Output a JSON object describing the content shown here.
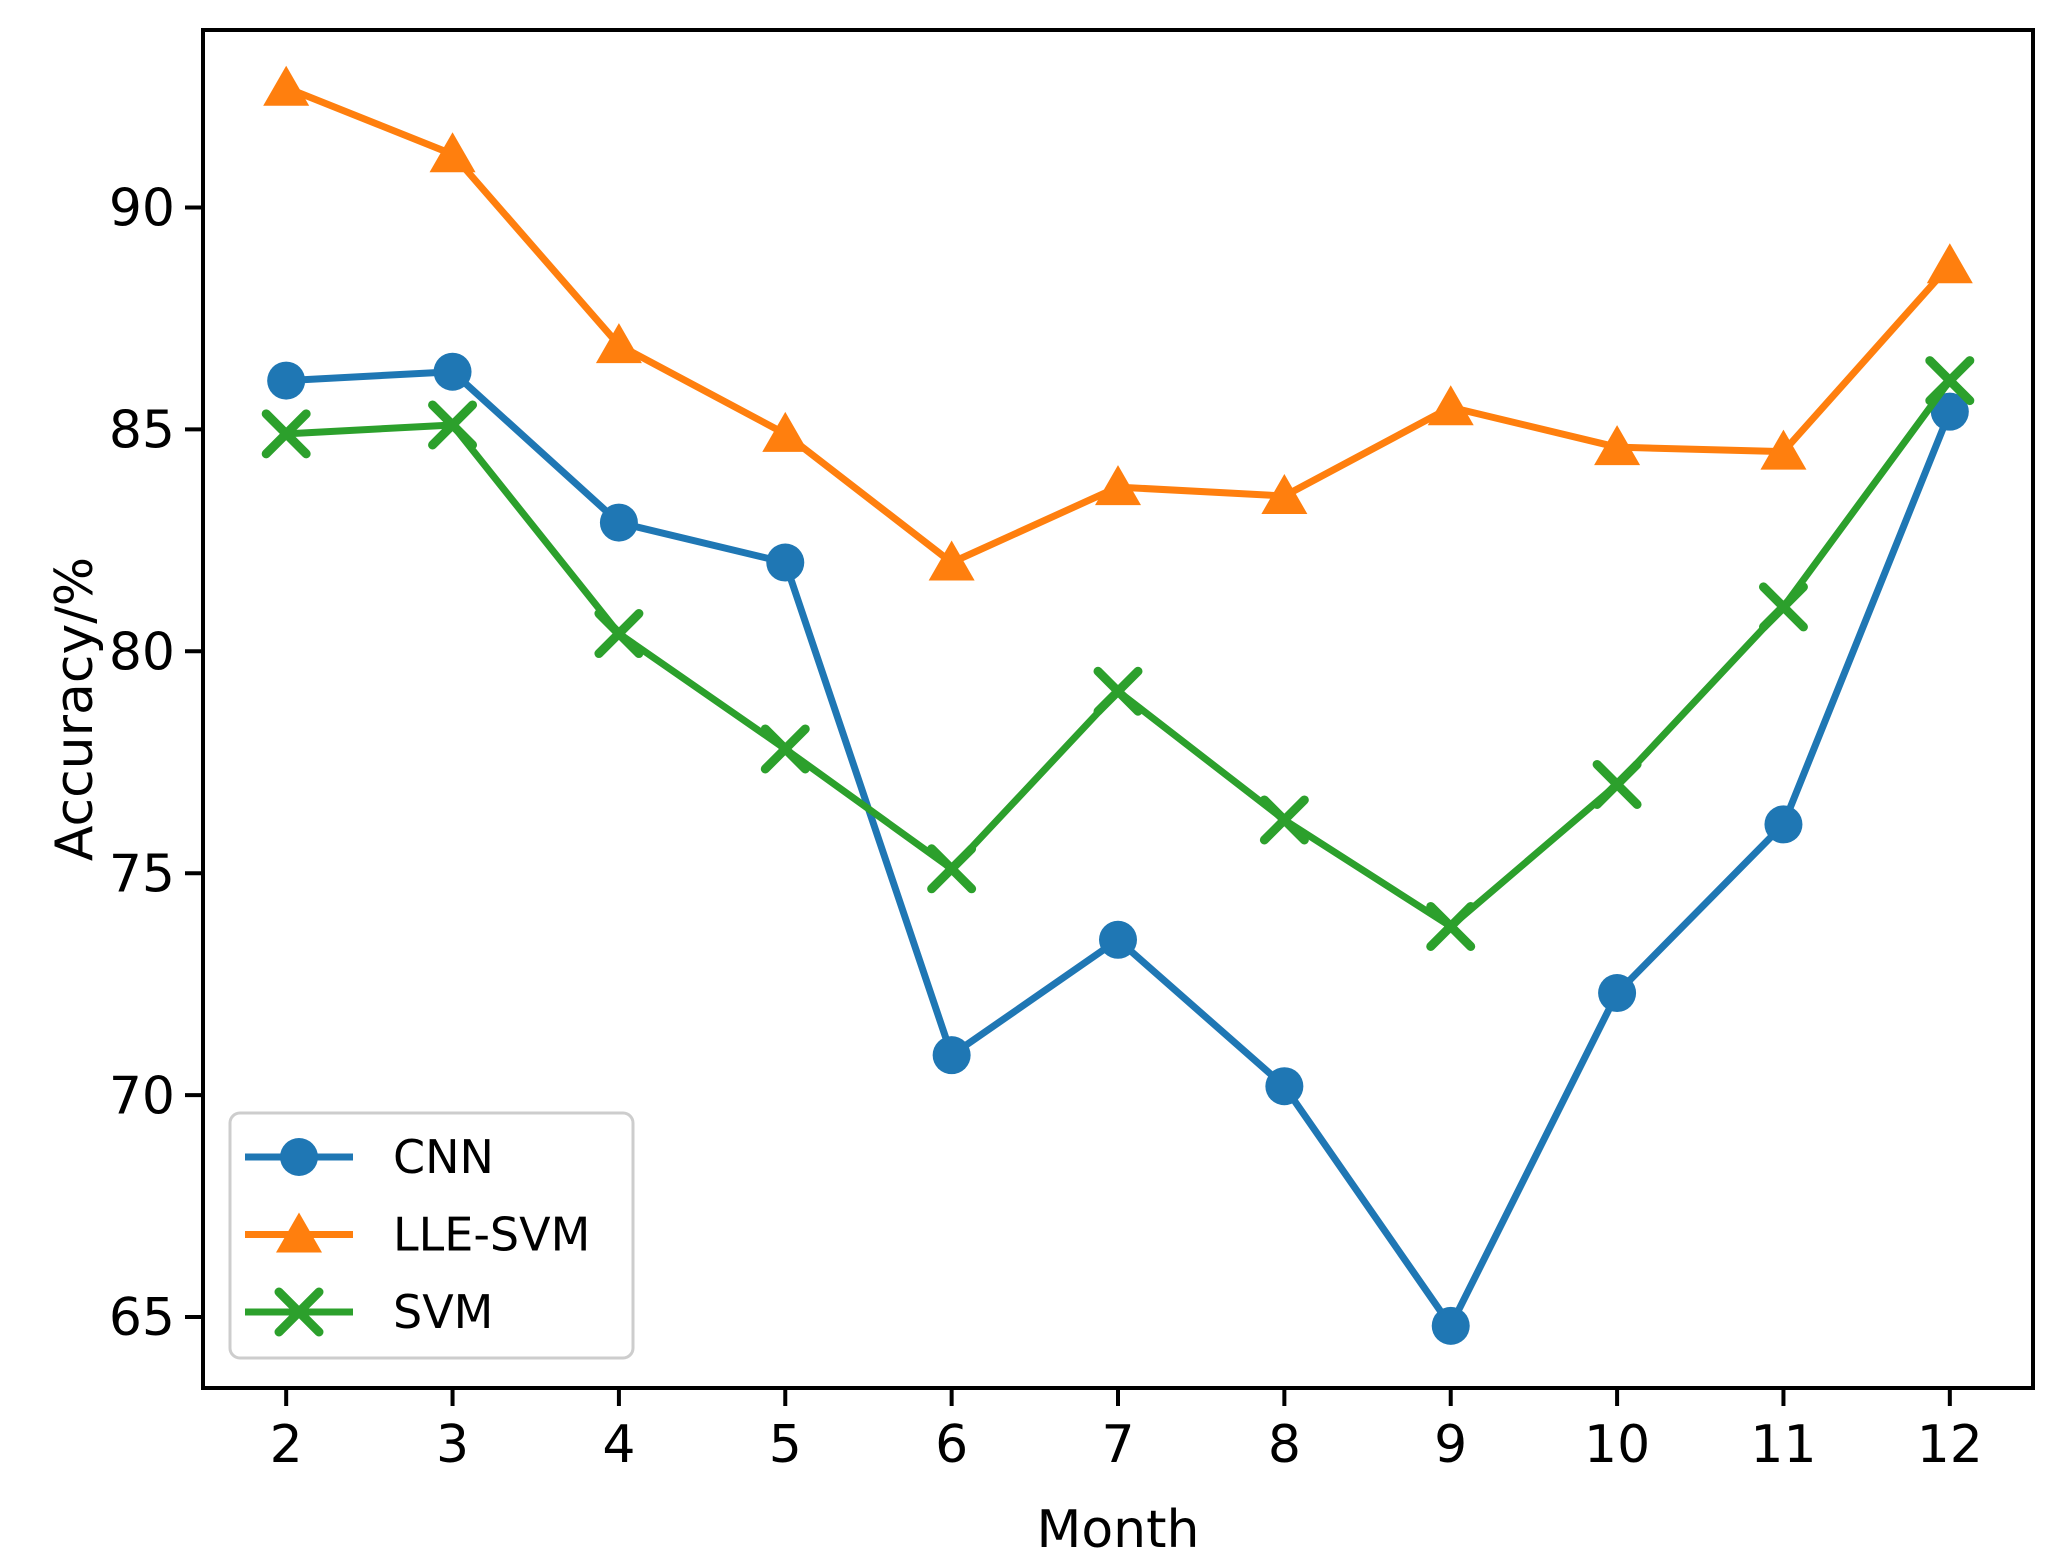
{
  "figure": {
    "background": "#ffffff"
  },
  "chart_data": {
    "type": "line",
    "title": "",
    "xlabel": "Month",
    "ylabel": "Accuracy/%",
    "x": [
      2,
      3,
      4,
      5,
      6,
      7,
      8,
      9,
      10,
      11,
      12
    ],
    "xlim": [
      1.5,
      12.5
    ],
    "ylim": [
      63.4,
      94.0
    ],
    "yticks": [
      65,
      70,
      75,
      80,
      85,
      90
    ],
    "grid": false,
    "legend_position": "lower left",
    "axis_color": "#000000",
    "legend_border_color": "#cdcdcd",
    "legend_background": "#ffffff",
    "series": [
      {
        "name": "CNN",
        "color": "#1f77b4",
        "marker": "circle",
        "values": [
          86.1,
          86.3,
          82.9,
          82.0,
          70.9,
          73.5,
          70.2,
          64.8,
          72.3,
          76.1,
          85.4
        ]
      },
      {
        "name": "LLE-SVM",
        "color": "#ff7f0e",
        "marker": "triangle-up",
        "values": [
          92.7,
          91.2,
          86.9,
          84.9,
          82.0,
          83.7,
          83.5,
          85.5,
          84.6,
          84.5,
          88.7
        ]
      },
      {
        "name": "SVM",
        "color": "#2ca02c",
        "marker": "x",
        "values": [
          84.9,
          85.1,
          80.4,
          77.8,
          75.1,
          79.1,
          76.2,
          73.8,
          77.0,
          81.0,
          86.1
        ]
      }
    ]
  }
}
